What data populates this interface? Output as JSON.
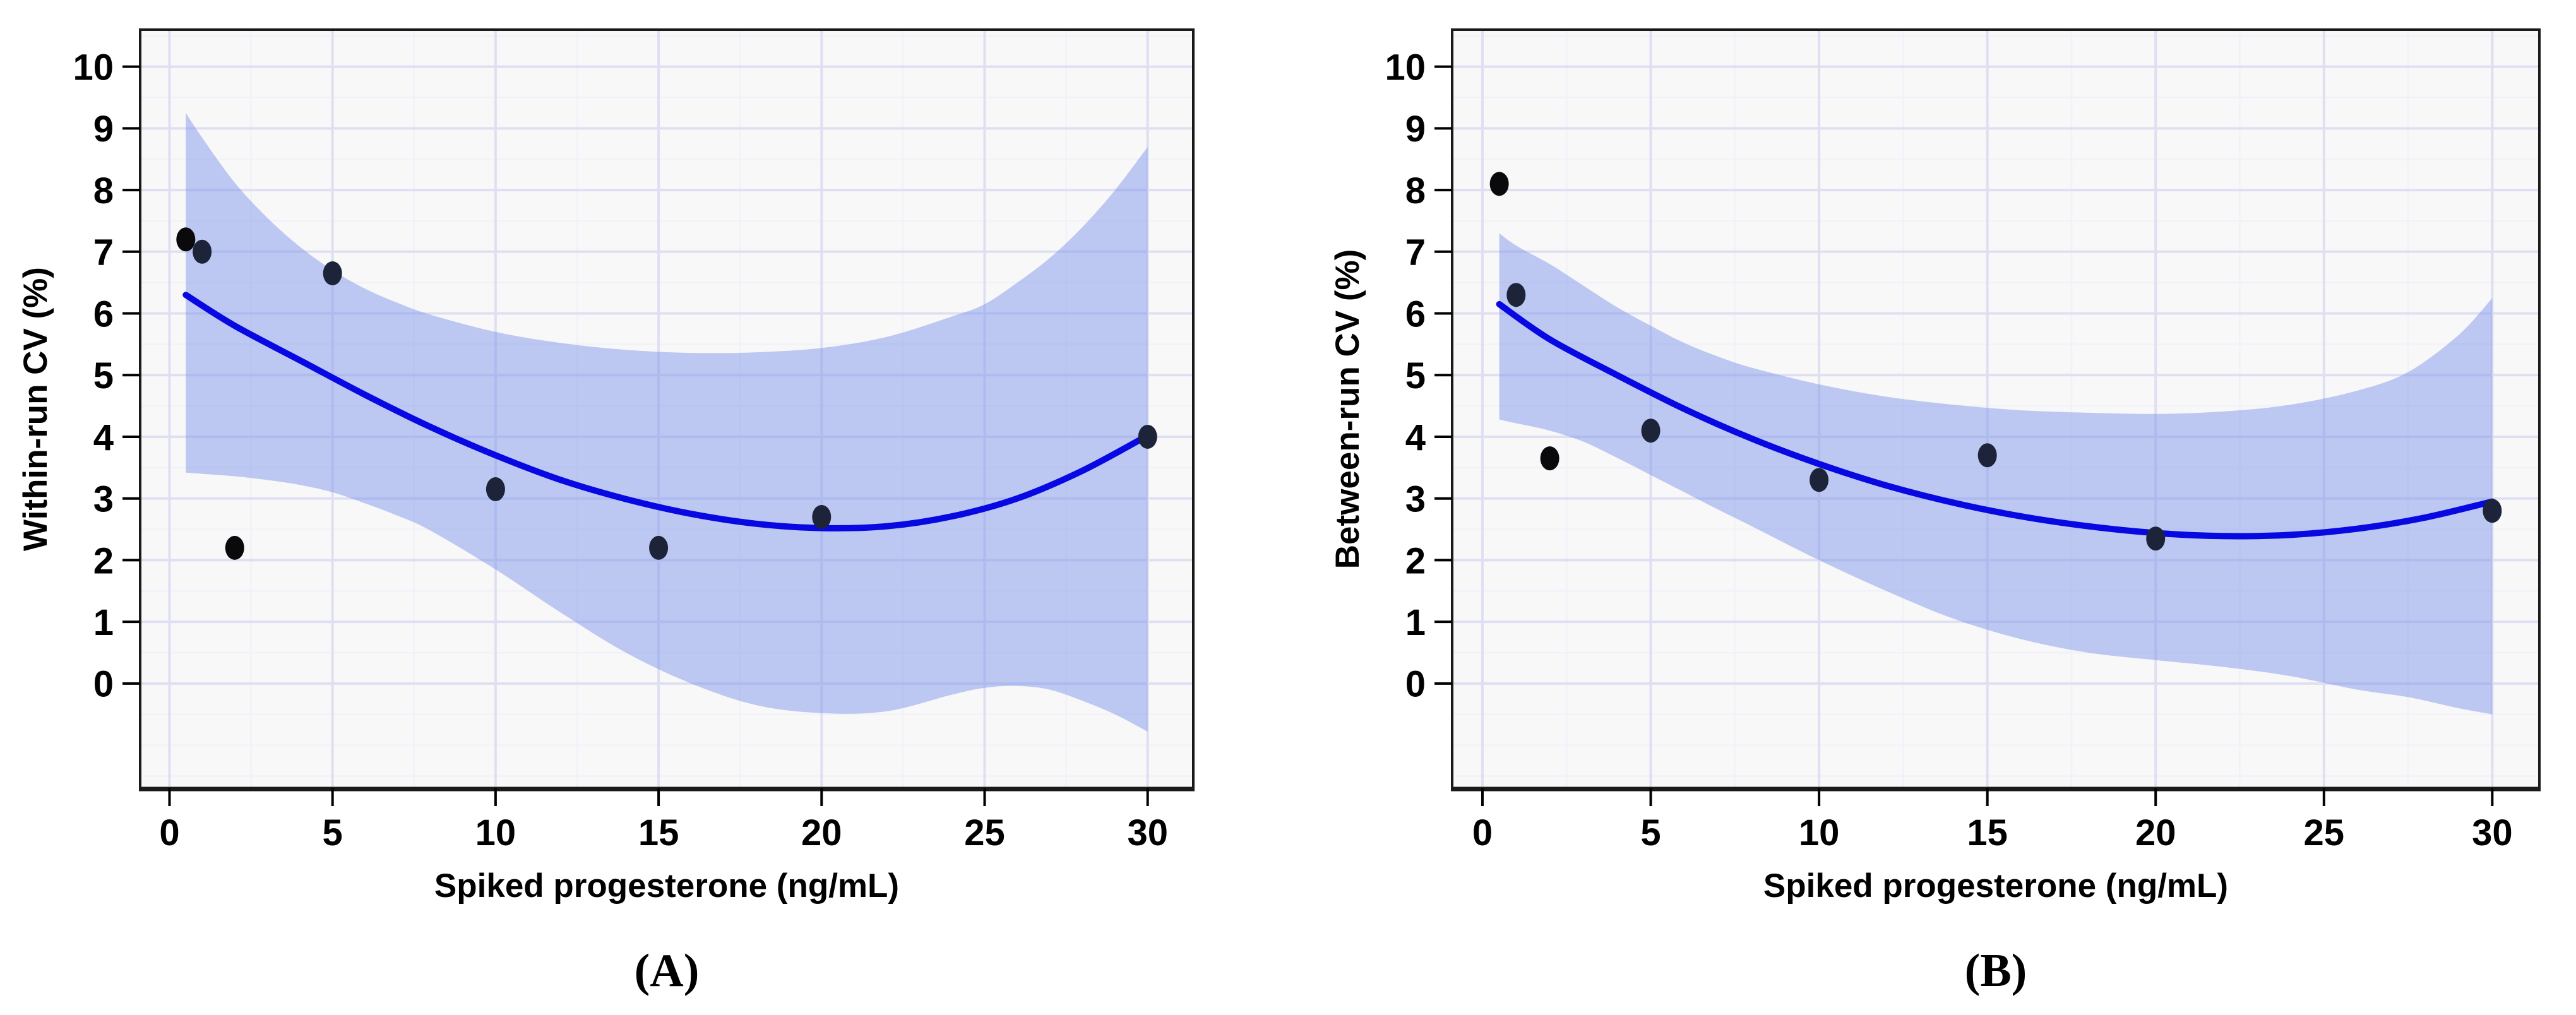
{
  "figure": {
    "description": "Two-panel precision plot of spiked progesterone assay CV with loess smooth and 95% confidence band",
    "background": "#ffffff"
  },
  "colors": {
    "page_background": "#ffffff",
    "plot_background": "#f8f8f9",
    "grid_major": "#dfdff2",
    "grid_minor": "#f1f1f9",
    "band_fill_rgba": "rgba(127,151,234,0.5)",
    "band_flat_hex": "#bcc8f2",
    "smooth_line": "#0808e2",
    "point_fill": "#1d2338",
    "point_fill_dark": "#0a0a0d",
    "axis_border": "#1a1a1a",
    "tick_color": "#000000",
    "text": "#000000"
  },
  "chart_data": [
    {
      "type": "scatter",
      "panel_label": "(A)",
      "title": "",
      "xlabel": "Spiked progesterone (ng/mL)",
      "ylabel": "Within-run CV (%)",
      "xlim": [
        -0.9,
        31.4
      ],
      "ylim": [
        -1.7,
        10.6
      ],
      "xticks": [
        0,
        5,
        10,
        15,
        20,
        25,
        30
      ],
      "yticks": [
        0,
        1,
        2,
        3,
        4,
        5,
        6,
        7,
        8,
        9,
        10
      ],
      "x_minor_step": 2.5,
      "y_minor_step": 0.5,
      "grid": "on",
      "legend_position": "none",
      "points": [
        {
          "x": 0.5,
          "y": 7.2,
          "dark": true
        },
        {
          "x": 1,
          "y": 7.0,
          "dark": false
        },
        {
          "x": 2,
          "y": 2.2,
          "dark": true
        },
        {
          "x": 5,
          "y": 6.65,
          "dark": false
        },
        {
          "x": 10,
          "y": 3.15,
          "dark": false
        },
        {
          "x": 15,
          "y": 2.2,
          "dark": false
        },
        {
          "x": 20,
          "y": 2.7,
          "dark": false
        },
        {
          "x": 30,
          "y": 4.0,
          "dark": false
        }
      ],
      "smooth_line": [
        [
          0.5,
          6.3
        ],
        [
          2,
          5.8
        ],
        [
          4,
          5.24
        ],
        [
          6,
          4.68
        ],
        [
          8,
          4.16
        ],
        [
          10,
          3.7
        ],
        [
          12,
          3.3
        ],
        [
          14,
          2.99
        ],
        [
          16,
          2.75
        ],
        [
          18,
          2.59
        ],
        [
          20,
          2.52
        ],
        [
          22,
          2.55
        ],
        [
          24,
          2.71
        ],
        [
          26,
          3.0
        ],
        [
          28,
          3.45
        ],
        [
          30,
          4.02
        ]
      ],
      "ci_band": [
        [
          0.5,
          3.42,
          9.25
        ],
        [
          1,
          3.4,
          8.85
        ],
        [
          2,
          3.36,
          8.12
        ],
        [
          3,
          3.3,
          7.55
        ],
        [
          4,
          3.22,
          7.08
        ],
        [
          5,
          3.1,
          6.7
        ],
        [
          6,
          2.92,
          6.4
        ],
        [
          7,
          2.72,
          6.17
        ],
        [
          8,
          2.48,
          5.98
        ],
        [
          10,
          1.85,
          5.7
        ],
        [
          12,
          1.15,
          5.52
        ],
        [
          14,
          0.5,
          5.41
        ],
        [
          16,
          0.0,
          5.36
        ],
        [
          18,
          -0.35,
          5.37
        ],
        [
          20,
          -0.48,
          5.44
        ],
        [
          22,
          -0.45,
          5.62
        ],
        [
          24,
          -0.18,
          5.95
        ],
        [
          25,
          -0.07,
          6.15
        ],
        [
          26,
          -0.04,
          6.5
        ],
        [
          27,
          -0.1,
          6.9
        ],
        [
          28,
          -0.28,
          7.4
        ],
        [
          29,
          -0.5,
          8.0
        ],
        [
          30,
          -0.78,
          8.7
        ]
      ]
    },
    {
      "type": "scatter",
      "panel_label": "(B)",
      "title": "",
      "xlabel": "Spiked progesterone (ng/mL)",
      "ylabel": "Between-run CV (%)",
      "xlim": [
        -0.9,
        31.4
      ],
      "ylim": [
        -1.7,
        10.6
      ],
      "xticks": [
        0,
        5,
        10,
        15,
        20,
        25,
        30
      ],
      "yticks": [
        0,
        1,
        2,
        3,
        4,
        5,
        6,
        7,
        8,
        9,
        10
      ],
      "x_minor_step": 2.5,
      "y_minor_step": 0.5,
      "grid": "on",
      "legend_position": "none",
      "points": [
        {
          "x": 0.5,
          "y": 8.1,
          "dark": true
        },
        {
          "x": 1,
          "y": 6.3,
          "dark": false
        },
        {
          "x": 2,
          "y": 3.65,
          "dark": true
        },
        {
          "x": 5,
          "y": 4.1,
          "dark": false
        },
        {
          "x": 10,
          "y": 3.3,
          "dark": false
        },
        {
          "x": 15,
          "y": 3.7,
          "dark": false
        },
        {
          "x": 20,
          "y": 2.35,
          "dark": false
        },
        {
          "x": 30,
          "y": 2.8,
          "dark": false
        }
      ],
      "smooth_line": [
        [
          0.5,
          6.15
        ],
        [
          2,
          5.58
        ],
        [
          4,
          5.0
        ],
        [
          6,
          4.45
        ],
        [
          8,
          3.97
        ],
        [
          10,
          3.56
        ],
        [
          12,
          3.21
        ],
        [
          14,
          2.93
        ],
        [
          16,
          2.71
        ],
        [
          18,
          2.55
        ],
        [
          20,
          2.44
        ],
        [
          22,
          2.39
        ],
        [
          24,
          2.41
        ],
        [
          26,
          2.51
        ],
        [
          28,
          2.69
        ],
        [
          30,
          2.95
        ]
      ],
      "ci_band": [
        [
          0.5,
          4.28,
          7.3
        ],
        [
          1,
          4.22,
          7.1
        ],
        [
          2,
          4.1,
          6.8
        ],
        [
          3,
          3.92,
          6.45
        ],
        [
          4,
          3.66,
          6.1
        ],
        [
          5,
          3.38,
          5.8
        ],
        [
          6,
          3.1,
          5.52
        ],
        [
          7,
          2.82,
          5.3
        ],
        [
          8,
          2.55,
          5.12
        ],
        [
          10,
          2.0,
          4.85
        ],
        [
          12,
          1.5,
          4.65
        ],
        [
          14,
          1.05,
          4.52
        ],
        [
          16,
          0.72,
          4.43
        ],
        [
          18,
          0.5,
          4.39
        ],
        [
          20,
          0.38,
          4.37
        ],
        [
          22,
          0.27,
          4.41
        ],
        [
          24,
          0.12,
          4.52
        ],
        [
          26,
          -0.1,
          4.75
        ],
        [
          27.5,
          -0.22,
          5.05
        ],
        [
          29,
          -0.4,
          5.65
        ],
        [
          30,
          -0.5,
          6.25
        ]
      ]
    }
  ]
}
